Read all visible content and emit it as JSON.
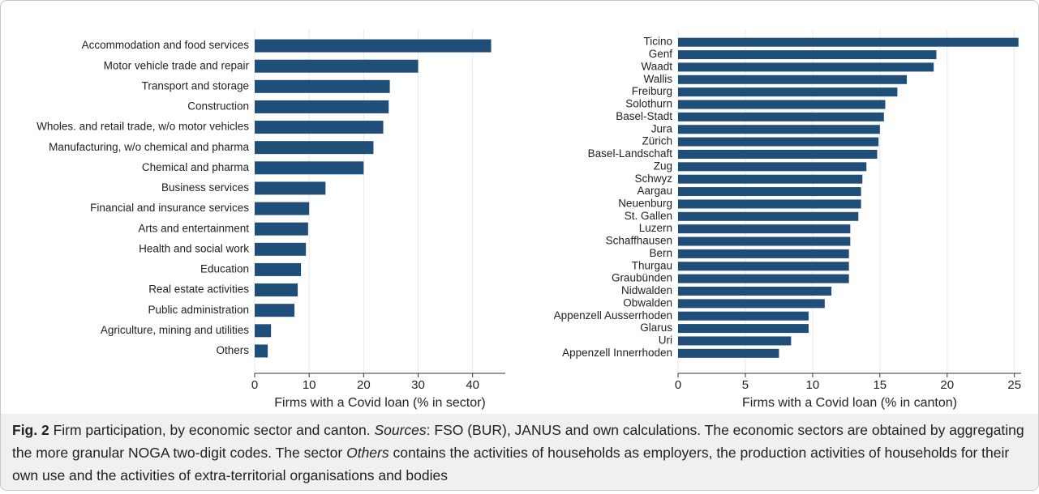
{
  "chart_data": [
    {
      "type": "barh",
      "xlabel": "Firms with a Covid loan (% in sector)",
      "color": "#1f4e79",
      "categories": [
        "Accommodation and food services",
        "Motor vehicle trade and repair",
        "Transport and storage",
        "Construction",
        "Wholes. and retail trade, w/o motor vehicles",
        "Manufacturing, w/o chemical and pharma",
        "Chemical and pharma",
        "Business services",
        "Financial and insurance services",
        "Arts and entertainment",
        "Health and social work",
        "Education",
        "Real estate activities",
        "Public administration",
        "Agriculture, mining and utilities",
        "Others"
      ],
      "values": [
        43.4,
        30,
        24.8,
        24.6,
        23.6,
        21.8,
        20,
        13,
        10,
        9.8,
        9.4,
        8.5,
        7.9,
        7.3,
        3,
        2.4
      ],
      "xlim": [
        0,
        46
      ],
      "xticks": [
        0,
        10,
        20,
        30,
        40
      ],
      "grid": true
    },
    {
      "type": "barh",
      "xlabel": "Firms with a Covid loan (% in canton)",
      "color": "#1f4e79",
      "categories": [
        "Ticino",
        "Genf",
        "Waadt",
        "Wallis",
        "Freiburg",
        "Solothurn",
        "Basel-Stadt",
        "Jura",
        "Zürich",
        "Basel-Landschaft",
        "Zug",
        "Schwyz",
        "Aargau",
        "Neuenburg",
        "St. Gallen",
        "Luzern",
        "Schaffhausen",
        "Bern",
        "Thurgau",
        "Graubünden",
        "Nidwalden",
        "Obwalden",
        "Appenzell Ausserrhoden",
        "Glarus",
        "Uri",
        "Appenzell Innerrhoden"
      ],
      "values": [
        25.3,
        19.2,
        19,
        17,
        16.3,
        15.4,
        15.3,
        15,
        14.9,
        14.8,
        14,
        13.7,
        13.6,
        13.6,
        13.4,
        12.8,
        12.8,
        12.7,
        12.7,
        12.7,
        11.4,
        10.9,
        9.7,
        9.7,
        8.4,
        7.5
      ],
      "xlim": [
        0,
        25.5
      ],
      "xticks": [
        0,
        5,
        10,
        15,
        20,
        25
      ],
      "grid": true
    }
  ],
  "caption": {
    "segments": [
      {
        "text": "Fig. 2",
        "style": "bold"
      },
      {
        "text": " Firm participation, by economic sector and canton. ",
        "style": "normal"
      },
      {
        "text": "Sources",
        "style": "italic"
      },
      {
        "text": ": FSO (BUR), JANUS and own calculations. The economic sectors are obtained by aggregating the more granular NOGA two-digit codes. The sector ",
        "style": "normal"
      },
      {
        "text": "Others",
        "style": "italic"
      },
      {
        "text": " contains the activities of households as employers, the production activities of households for their own use and the activities of extra-territorial organisations and bodies",
        "style": "normal"
      }
    ]
  }
}
